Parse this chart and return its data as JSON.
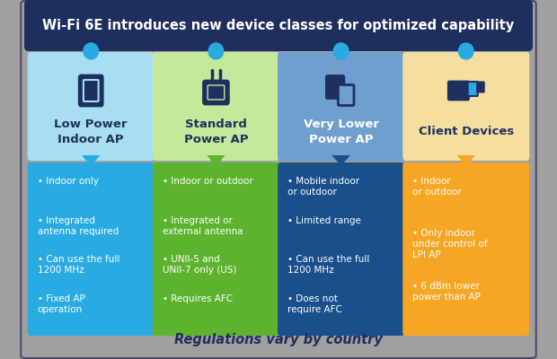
{
  "title": "Wi-Fi 6E introduces new device classes for optimized capability",
  "title_bg": "#1e2f5e",
  "title_color": "#ffffff",
  "footer": "Regulations vary by country",
  "footer_color": "#1e2f5e",
  "bg_color": "#a0a0a0",
  "outer_border": "#4a4a6a",
  "columns": [
    {
      "header": "Low Power\nIndoor AP",
      "header_bg": "#a8dff0",
      "body_bg": "#29abe2",
      "dot_color": "#29abe2",
      "arrow_color": "#29abe2",
      "text_color": "#ffffff",
      "header_text_color": "#1e3060"
    },
    {
      "header": "Standard\nPower AP",
      "header_bg": "#c5e89a",
      "body_bg": "#5db32e",
      "dot_color": "#29abe2",
      "arrow_color": "#5db32e",
      "text_color": "#ffffff",
      "header_text_color": "#1e3060"
    },
    {
      "header": "Very Lower\nPower AP",
      "header_bg": "#6e9fcf",
      "body_bg": "#1a4f8c",
      "dot_color": "#29abe2",
      "arrow_color": "#1a4f8c",
      "text_color": "#ffffff",
      "header_text_color": "#ffffff"
    },
    {
      "header": "Client Devices",
      "header_bg": "#f5dfa0",
      "body_bg": "#f5a623",
      "dot_color": "#29abe2",
      "arrow_color": "#f5a623",
      "text_color": "#ffffff",
      "header_text_color": "#1e3060"
    }
  ],
  "bullets": [
    [
      "Indoor only",
      "Integrated\nantenna required",
      "Can use the full\n1200 MHz",
      "Fixed AP\noperation"
    ],
    [
      "Indoor or outdoor",
      "Integrated or\nexternal antenna",
      "UNII-5 and\nUNII-7 only (US)",
      "Requires AFC"
    ],
    [
      "Mobile indoor\nor outdoor",
      "Limited range",
      "Can use the full\n1200 MHz",
      "Does not\nrequire AFC"
    ],
    [
      "Indoor\nor outdoor",
      "Only indoor\nunder control of\nLPI AP",
      "6 dBm lower\npower than AP"
    ]
  ]
}
